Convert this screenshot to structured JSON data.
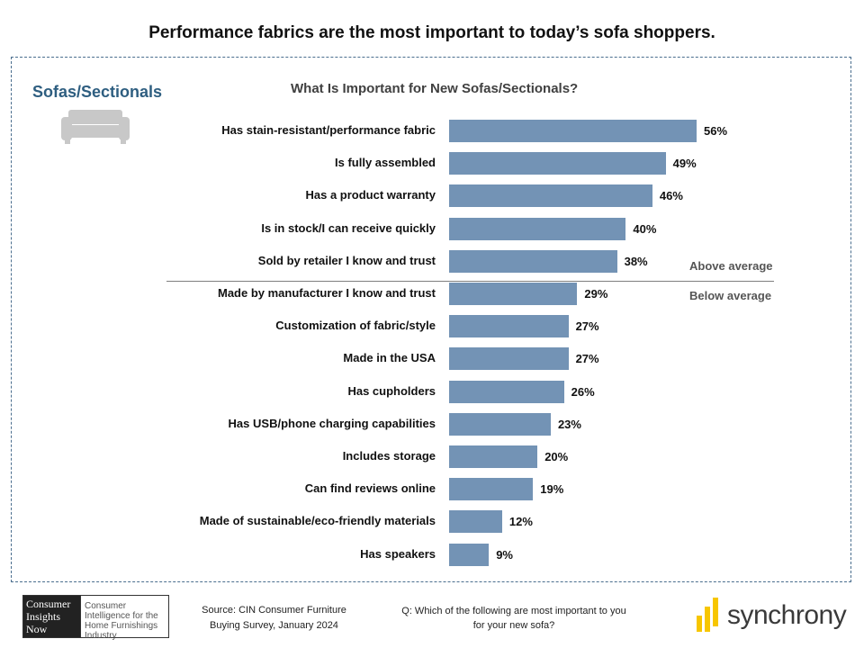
{
  "headline": "Performance fabrics are the most important to today’s sofa shoppers.",
  "category": "Sofas/Sectionals",
  "icon": "sofa-icon",
  "annotations": {
    "above": "Above average",
    "below": "Below average"
  },
  "chart_data": {
    "type": "bar",
    "orientation": "horizontal",
    "title": "What Is Important for New Sofas/Sectionals?",
    "categories": [
      "Has stain-resistant/performance fabric",
      "Is fully assembled",
      "Has a product warranty",
      "Is in stock/I can receive quickly",
      "Sold by retailer I know and trust",
      "Made by manufacturer I know and trust",
      "Customization of fabric/style",
      "Made in the USA",
      "Has cupholders",
      "Has USB/phone charging capabilities",
      "Includes storage",
      "Can find reviews online",
      "Made of sustainable/eco-friendly materials",
      "Has speakers"
    ],
    "values": [
      56,
      49,
      46,
      40,
      38,
      29,
      27,
      27,
      26,
      23,
      20,
      19,
      12,
      9
    ],
    "value_labels": [
      "56%",
      "49%",
      "46%",
      "40%",
      "38%",
      "29%",
      "27%",
      "27%",
      "26%",
      "23%",
      "20%",
      "19%",
      "12%",
      "9%"
    ],
    "bar_color": "#7393b5",
    "grid": false,
    "legend": "none"
  },
  "footer": {
    "logo_mark": [
      "Consumer",
      "Insights",
      "Now"
    ],
    "logo_desc": "Consumer Intelligence for the Home Furnishings Industry",
    "source": "Source: CIN Consumer Furniture Buying Survey, January 2024",
    "question": "Q: Which of the following are most important to you for your new sofa?",
    "brand": "synchrony",
    "brand_color": "#f7c600"
  }
}
